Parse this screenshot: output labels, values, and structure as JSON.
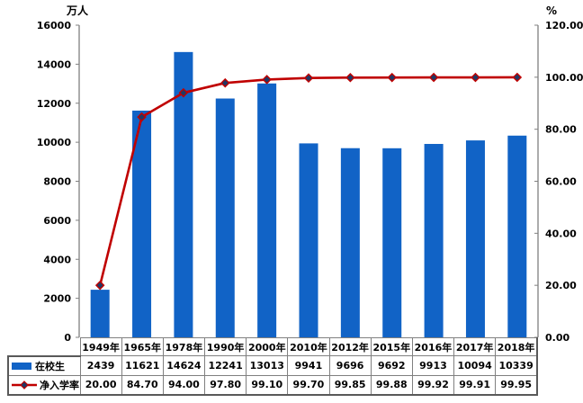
{
  "chart_data": {
    "type": "bar+line",
    "categories": [
      "1949年",
      "1965年",
      "1978年",
      "1990年",
      "2000年",
      "2010年",
      "2012年",
      "2015年",
      "2016年",
      "2017年",
      "2018年"
    ],
    "series": [
      {
        "name": "在校生",
        "type": "bar",
        "axis": "left",
        "color": "#1163c6",
        "values": [
          2439,
          11621,
          14624,
          12241,
          13013,
          9941,
          9696,
          9692,
          9913,
          10094,
          10339
        ]
      },
      {
        "name": "净入学率",
        "type": "line",
        "axis": "right",
        "color": "#c00000",
        "marker": "diamond",
        "marker_color": "#203864",
        "values": [
          20.0,
          84.7,
          94.0,
          97.8,
          99.1,
          99.7,
          99.85,
          99.88,
          99.92,
          99.91,
          99.95
        ]
      }
    ],
    "title": "",
    "left_axis": {
      "title": "万人",
      "min": 0,
      "max": 16000,
      "step": 2000,
      "tick_labels": [
        "0",
        "2000",
        "4000",
        "6000",
        "8000",
        "10000",
        "12000",
        "14000",
        "16000"
      ]
    },
    "right_axis": {
      "title": "%",
      "min": 0,
      "max": 120,
      "step": 20,
      "tick_labels": [
        "0.00",
        "20.00",
        "40.00",
        "60.00",
        "80.00",
        "100.00",
        "120.00"
      ]
    },
    "grid": false,
    "legend_position": "table-rows"
  },
  "table": {
    "corner": "",
    "header": [
      "1949年",
      "1965年",
      "1978年",
      "1990年",
      "2000年",
      "2010年",
      "2012年",
      "2015年",
      "2016年",
      "2017年",
      "2018年"
    ],
    "rows": [
      {
        "label": "在校生",
        "swatch": "bar",
        "values": [
          "2439",
          "11621",
          "14624",
          "12241",
          "13013",
          "9941",
          "9696",
          "9692",
          "9913",
          "10094",
          "10339"
        ]
      },
      {
        "label": "净入学率",
        "swatch": "line",
        "values": [
          "20.00",
          "84.70",
          "94.00",
          "97.80",
          "99.10",
          "99.70",
          "99.85",
          "99.88",
          "99.92",
          "99.91",
          "99.95"
        ]
      }
    ]
  },
  "colors": {
    "bar": "#1163c6",
    "line": "#c00000",
    "marker_fill": "#203864",
    "axis": "#808080",
    "table_border": "#808080",
    "table_outer_border": "#595959",
    "text": "#000000"
  }
}
